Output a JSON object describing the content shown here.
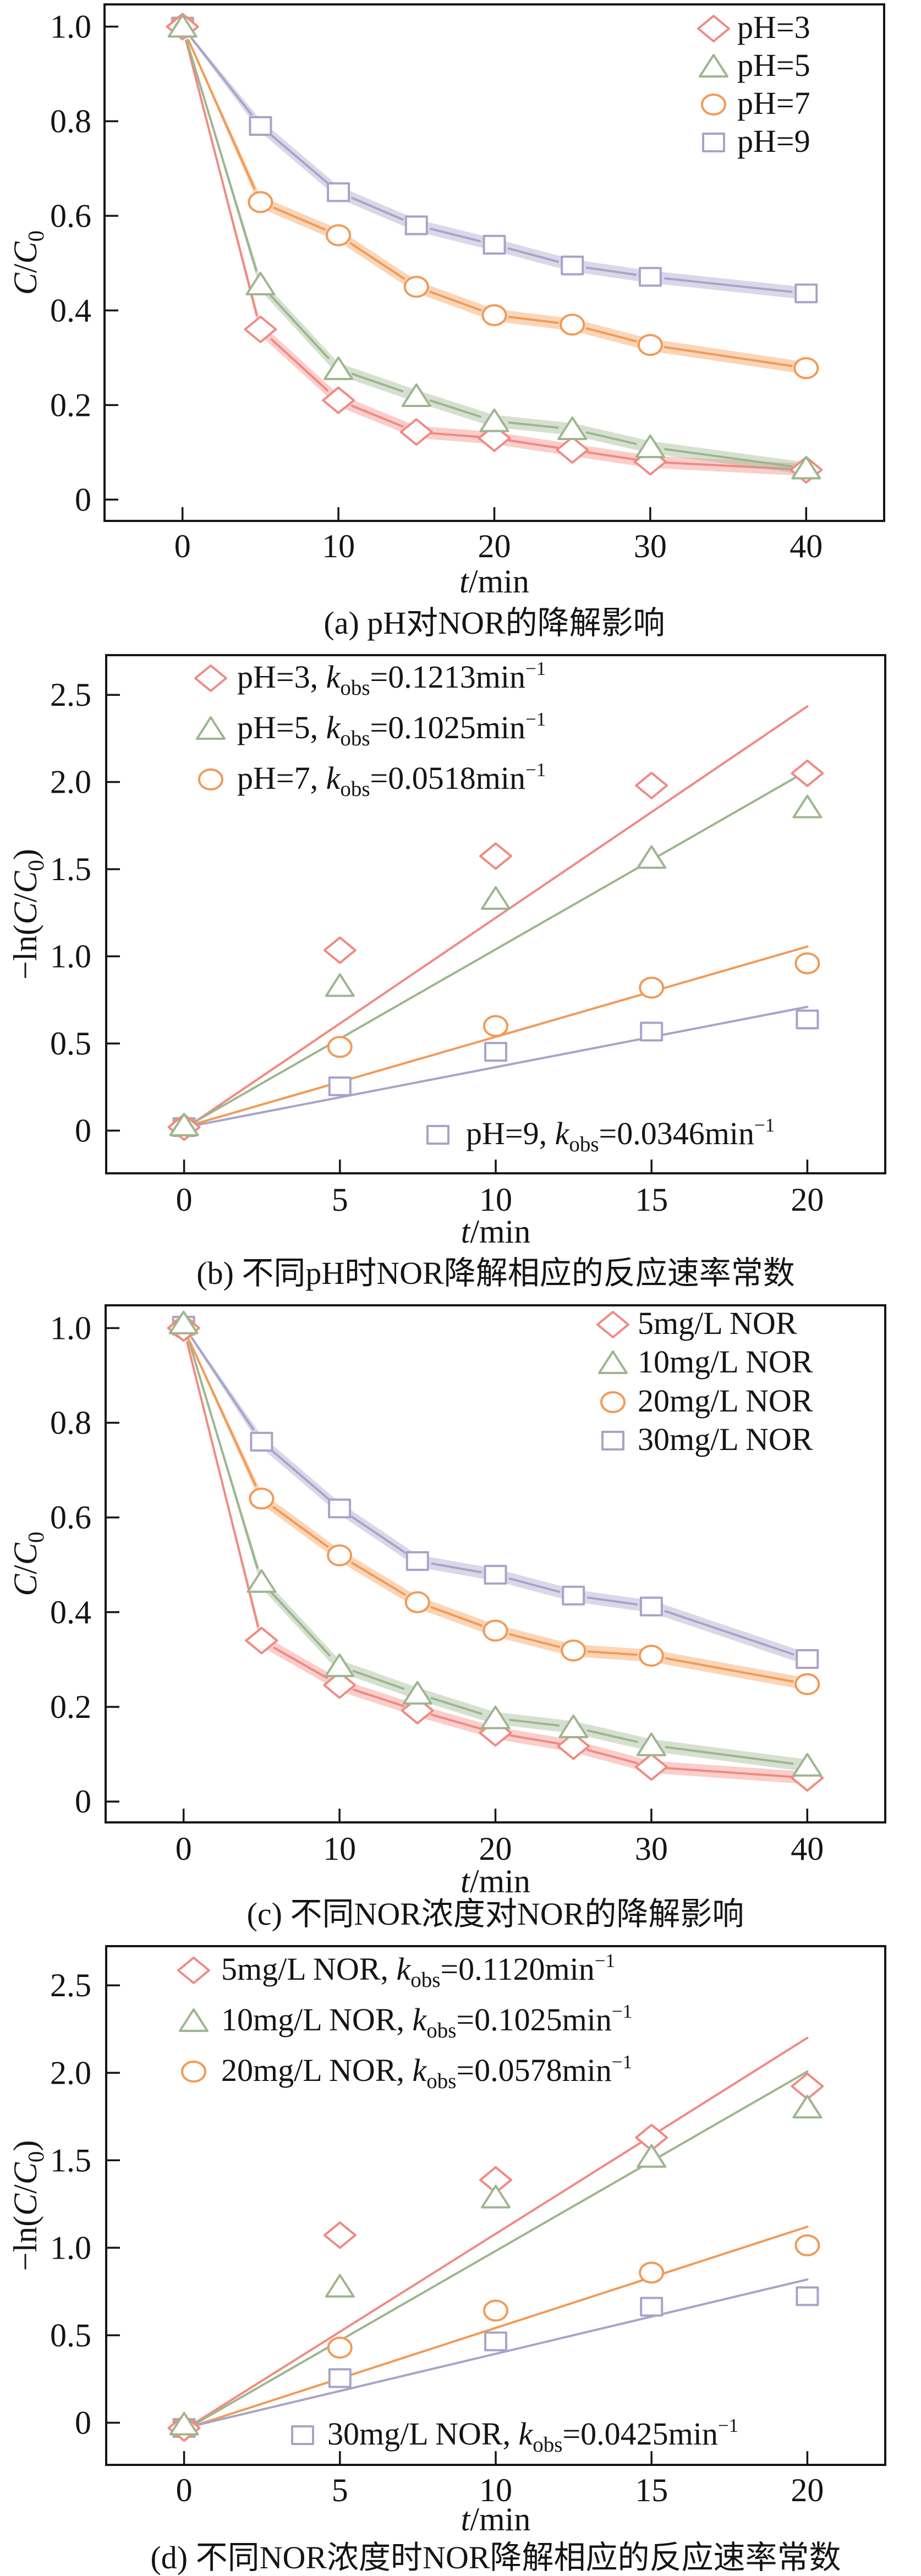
{
  "chart_data": [
    {
      "panel": "a",
      "type": "line",
      "caption": "(a) pH对NOR的降解影响",
      "xlabel": [
        {
          "text": "t",
          "style": "italic"
        },
        {
          "text": "/min"
        }
      ],
      "ylabel": [
        {
          "text": "C",
          "style": "italic"
        },
        {
          "text": "/"
        },
        {
          "text": "C",
          "style": "italic"
        },
        {
          "text": "0",
          "style": "sub"
        }
      ],
      "xlim": [
        -5,
        45
      ],
      "ylim": [
        -0.045,
        1.047
      ],
      "grid": false,
      "legend_position": "top-right",
      "x_ticks": {
        "values": [
          0,
          10,
          20,
          30,
          40
        ],
        "labels": [
          "0",
          "10",
          "20",
          "30",
          "40"
        ]
      },
      "y_ticks": {
        "values": [
          0,
          0.2,
          0.4,
          0.6,
          0.8,
          1.0
        ],
        "labels": [
          "0",
          "0.2",
          "0.4",
          "0.6",
          "0.8",
          "1.0"
        ]
      },
      "x": [
        0,
        5,
        10,
        15,
        20,
        25,
        30,
        40
      ],
      "series": [
        {
          "name": "pH=3",
          "marker": "diamond",
          "color": "#F08A82",
          "values": [
            1.0,
            0.36,
            0.21,
            0.143,
            0.13,
            0.105,
            0.08,
            0.063
          ],
          "band_halfwidth": [
            0.003,
            0.013,
            0.013,
            0.013,
            0.013,
            0.013,
            0.013,
            0.013
          ]
        },
        {
          "name": "pH=5",
          "marker": "triangle",
          "color": "#9DB68E",
          "values": [
            1.0,
            0.455,
            0.276,
            0.219,
            0.166,
            0.149,
            0.111,
            0.066
          ],
          "band_halfwidth": [
            0.003,
            0.013,
            0.013,
            0.013,
            0.013,
            0.013,
            0.013,
            0.013
          ]
        },
        {
          "name": "pH=7",
          "marker": "circle",
          "color": "#F29A56",
          "values": [
            1.0,
            0.629,
            0.559,
            0.45,
            0.39,
            0.37,
            0.327,
            0.278
          ],
          "band_halfwidth": [
            0.003,
            0.013,
            0.013,
            0.013,
            0.013,
            0.013,
            0.013,
            0.013
          ]
        },
        {
          "name": "pH=9",
          "marker": "square",
          "color": "#A8A3C8",
          "values": [
            1.0,
            0.79,
            0.65,
            0.58,
            0.539,
            0.495,
            0.471,
            0.436
          ],
          "band_halfwidth": [
            0.003,
            0.013,
            0.013,
            0.013,
            0.013,
            0.013,
            0.013,
            0.013
          ]
        }
      ]
    },
    {
      "panel": "b",
      "type": "scatter",
      "caption": "(b) 不同pH时NOR降解相应的反应速率常数",
      "xlabel": [
        {
          "text": "t",
          "style": "italic"
        },
        {
          "text": "/min"
        }
      ],
      "ylabel": [
        {
          "text": "−ln("
        },
        {
          "text": "C",
          "style": "italic"
        },
        {
          "text": "/"
        },
        {
          "text": "C",
          "style": "italic"
        },
        {
          "text": "0",
          "style": "sub"
        },
        {
          "text": ")"
        }
      ],
      "xlim": [
        -2.5,
        22.5
      ],
      "ylim": [
        -0.245,
        2.728
      ],
      "grid": false,
      "legend_position": "top-left",
      "x_ticks": {
        "values": [
          0,
          5,
          10,
          15,
          20
        ],
        "labels": [
          "0",
          "5",
          "10",
          "15",
          "20"
        ]
      },
      "y_ticks": {
        "values": [
          0,
          0.5,
          1.0,
          1.5,
          2.0,
          2.5
        ],
        "labels": [
          "0",
          "0.5",
          "1.0",
          "1.5",
          "2.0",
          "2.5"
        ]
      },
      "x": [
        0,
        5,
        10,
        15,
        20
      ],
      "series": [
        {
          "name": "pH=3",
          "marker": "diamond",
          "color": "#F08A82",
          "values": [
            0.02,
            1.035,
            1.575,
            1.98,
            2.05
          ],
          "k_obs": 0.1213,
          "fit": {
            "slope": 0.1213,
            "intercept": 0.008,
            "x_range": [
              0,
              20
            ]
          },
          "legend_label": [
            {
              "text": "pH=3, "
            },
            {
              "text": "k",
              "style": "italic"
            },
            {
              "text": "obs",
              "style": "sub"
            },
            {
              "text": "=0.1213min"
            },
            {
              "text": "−1",
              "style": "sup"
            }
          ]
        },
        {
          "name": "pH=5",
          "marker": "triangle",
          "color": "#9DB68E",
          "values": [
            0.03,
            0.83,
            1.33,
            1.565,
            1.855
          ],
          "k_obs": 0.1025,
          "fit": {
            "slope": 0.1025,
            "intercept": 0.015,
            "x_range": [
              0,
              20
            ]
          },
          "legend_label": [
            {
              "text": "pH=5, "
            },
            {
              "text": "k",
              "style": "italic"
            },
            {
              "text": "obs",
              "style": "sub"
            },
            {
              "text": "=0.1025min"
            },
            {
              "text": "−1",
              "style": "sup"
            }
          ]
        },
        {
          "name": "pH=7",
          "marker": "circle",
          "color": "#F29A56",
          "values": [
            0.02,
            0.48,
            0.6,
            0.82,
            0.96
          ],
          "k_obs": 0.0518,
          "fit": {
            "slope": 0.0518,
            "intercept": 0.02,
            "x_range": [
              0,
              20
            ]
          },
          "legend_label": [
            {
              "text": "pH=7, "
            },
            {
              "text": "k",
              "style": "italic"
            },
            {
              "text": "obs",
              "style": "sub"
            },
            {
              "text": "=0.0518min"
            },
            {
              "text": "−1",
              "style": "sup"
            }
          ]
        },
        {
          "name": "pH=9",
          "marker": "square",
          "color": "#A8A3C8",
          "values": [
            0.02,
            0.254,
            0.452,
            0.568,
            0.638
          ],
          "k_obs": 0.0346,
          "fit": {
            "slope": 0.0346,
            "intercept": 0.018,
            "x_range": [
              0,
              20
            ]
          },
          "legend_position": "bottom-right",
          "legend_label": [
            {
              "text": "pH=9, "
            },
            {
              "text": "k",
              "style": "italic"
            },
            {
              "text": "obs",
              "style": "sub"
            },
            {
              "text": "=0.0346min"
            },
            {
              "text": "−1",
              "style": "sup"
            }
          ]
        }
      ]
    },
    {
      "panel": "c",
      "type": "line",
      "caption": "(c) 不同NOR浓度对NOR的降解影响",
      "xlabel": [
        {
          "text": "t",
          "style": "italic"
        },
        {
          "text": "/min"
        }
      ],
      "ylabel": [
        {
          "text": "C",
          "style": "italic"
        },
        {
          "text": "/"
        },
        {
          "text": "C",
          "style": "italic"
        },
        {
          "text": "0",
          "style": "sub"
        }
      ],
      "xlim": [
        -5,
        45
      ],
      "ylim": [
        -0.044,
        1.048
      ],
      "grid": false,
      "legend_position": "top-right",
      "x_ticks": {
        "values": [
          0,
          10,
          20,
          30,
          40
        ],
        "labels": [
          "0",
          "10",
          "20",
          "30",
          "40"
        ]
      },
      "y_ticks": {
        "values": [
          0,
          0.2,
          0.4,
          0.6,
          0.8,
          1.0
        ],
        "labels": [
          "0",
          "0.2",
          "0.4",
          "0.6",
          "0.8",
          "1.0"
        ]
      },
      "x": [
        0,
        5,
        10,
        15,
        20,
        25,
        30,
        40
      ],
      "series": [
        {
          "name": "5mg/L NOR",
          "marker": "diamond",
          "color": "#F08A82",
          "values": [
            1.0,
            0.34,
            0.246,
            0.192,
            0.145,
            0.117,
            0.073,
            0.05
          ],
          "band_halfwidth": [
            0.003,
            0.013,
            0.013,
            0.013,
            0.013,
            0.013,
            0.013,
            0.013
          ]
        },
        {
          "name": "10mg/L NOR",
          "marker": "triangle",
          "color": "#9DB68E",
          "values": [
            1.01,
            0.464,
            0.286,
            0.228,
            0.176,
            0.157,
            0.119,
            0.076
          ],
          "band_halfwidth": [
            0.003,
            0.013,
            0.013,
            0.013,
            0.013,
            0.013,
            0.013,
            0.013
          ]
        },
        {
          "name": "20mg/L NOR",
          "marker": "circle",
          "color": "#F29A56",
          "values": [
            1.0,
            0.64,
            0.52,
            0.421,
            0.361,
            0.319,
            0.308,
            0.248
          ],
          "band_halfwidth": [
            0.003,
            0.013,
            0.013,
            0.013,
            0.013,
            0.013,
            0.013,
            0.013
          ]
        },
        {
          "name": "30mg/L NOR",
          "marker": "square",
          "color": "#A8A3C8",
          "values": [
            1.005,
            0.76,
            0.619,
            0.508,
            0.479,
            0.435,
            0.412,
            0.301
          ],
          "band_halfwidth": [
            0.003,
            0.013,
            0.013,
            0.013,
            0.013,
            0.013,
            0.013,
            0.013
          ]
        }
      ]
    },
    {
      "panel": "d",
      "type": "scatter",
      "caption": "(d) 不同NOR浓度时NOR降解相应的反应速率常数",
      "xlabel": [
        {
          "text": "t",
          "style": "italic"
        },
        {
          "text": "/min"
        }
      ],
      "ylabel": [
        {
          "text": "−ln("
        },
        {
          "text": "C",
          "style": "italic"
        },
        {
          "text": "/"
        },
        {
          "text": "C",
          "style": "italic"
        },
        {
          "text": "0",
          "style": "sub"
        },
        {
          "text": ")"
        }
      ],
      "xlim": [
        -2.5,
        22.5
      ],
      "ylim": [
        -0.241,
        2.724
      ],
      "grid": false,
      "legend_position": "top-left",
      "x_ticks": {
        "values": [
          0,
          5,
          10,
          15,
          20
        ],
        "labels": [
          "0",
          "5",
          "10",
          "15",
          "20"
        ]
      },
      "y_ticks": {
        "values": [
          0,
          0.5,
          1.0,
          1.5,
          2.0,
          2.5
        ],
        "labels": [
          "0",
          "0.5",
          "1.0",
          "1.5",
          "2.0",
          "2.5"
        ]
      },
      "x": [
        0,
        5,
        10,
        15,
        20
      ],
      "series": [
        {
          "name": "5mg/L NOR",
          "marker": "diamond",
          "color": "#F08A82",
          "values": [
            -0.03,
            1.072,
            1.388,
            1.63,
            1.923
          ],
          "k_obs": 0.112,
          "fit": {
            "slope": 0.112,
            "intercept": -0.04,
            "x_range": [
              0,
              20
            ]
          },
          "legend_label": [
            {
              "text": "5mg/L NOR, "
            },
            {
              "text": "k",
              "style": "italic"
            },
            {
              "text": "obs",
              "style": "sub"
            },
            {
              "text": "=0.1120min"
            },
            {
              "text": "−1",
              "style": "sup"
            }
          ]
        },
        {
          "name": "10mg/L NOR",
          "marker": "triangle",
          "color": "#9DB68E",
          "values": [
            -0.01,
            0.778,
            1.288,
            1.52,
            1.802
          ],
          "k_obs": 0.1025,
          "fit": {
            "slope": 0.1025,
            "intercept": -0.043,
            "x_range": [
              0,
              20
            ]
          },
          "legend_label": [
            {
              "text": "10mg/L NOR, "
            },
            {
              "text": "k",
              "style": "italic"
            },
            {
              "text": "obs",
              "style": "sub"
            },
            {
              "text": "=0.1025min"
            },
            {
              "text": "−1",
              "style": "sup"
            }
          ]
        },
        {
          "name": "20mg/L NOR",
          "marker": "circle",
          "color": "#F29A56",
          "values": [
            -0.03,
            0.429,
            0.641,
            0.858,
            1.014
          ],
          "k_obs": 0.0578,
          "fit": {
            "slope": 0.0578,
            "intercept": -0.036,
            "x_range": [
              0,
              20
            ]
          },
          "legend_label": [
            {
              "text": "20mg/L NOR, "
            },
            {
              "text": "k",
              "style": "italic"
            },
            {
              "text": "obs",
              "style": "sub"
            },
            {
              "text": "=0.0578min"
            },
            {
              "text": "−1",
              "style": "sup"
            }
          ]
        },
        {
          "name": "30mg/L NOR",
          "marker": "square",
          "color": "#A8A3C8",
          "values": [
            -0.03,
            0.255,
            0.465,
            0.663,
            0.723
          ],
          "k_obs": 0.0425,
          "fit": {
            "slope": 0.0425,
            "intercept": -0.031,
            "x_range": [
              0,
              20
            ]
          },
          "legend_position": "bottom-right",
          "legend_label": [
            {
              "text": "30mg/L NOR, "
            },
            {
              "text": "k",
              "style": "italic"
            },
            {
              "text": "obs",
              "style": "sub"
            },
            {
              "text": "=0.0425min"
            },
            {
              "text": "−1",
              "style": "sup"
            }
          ]
        }
      ]
    }
  ]
}
